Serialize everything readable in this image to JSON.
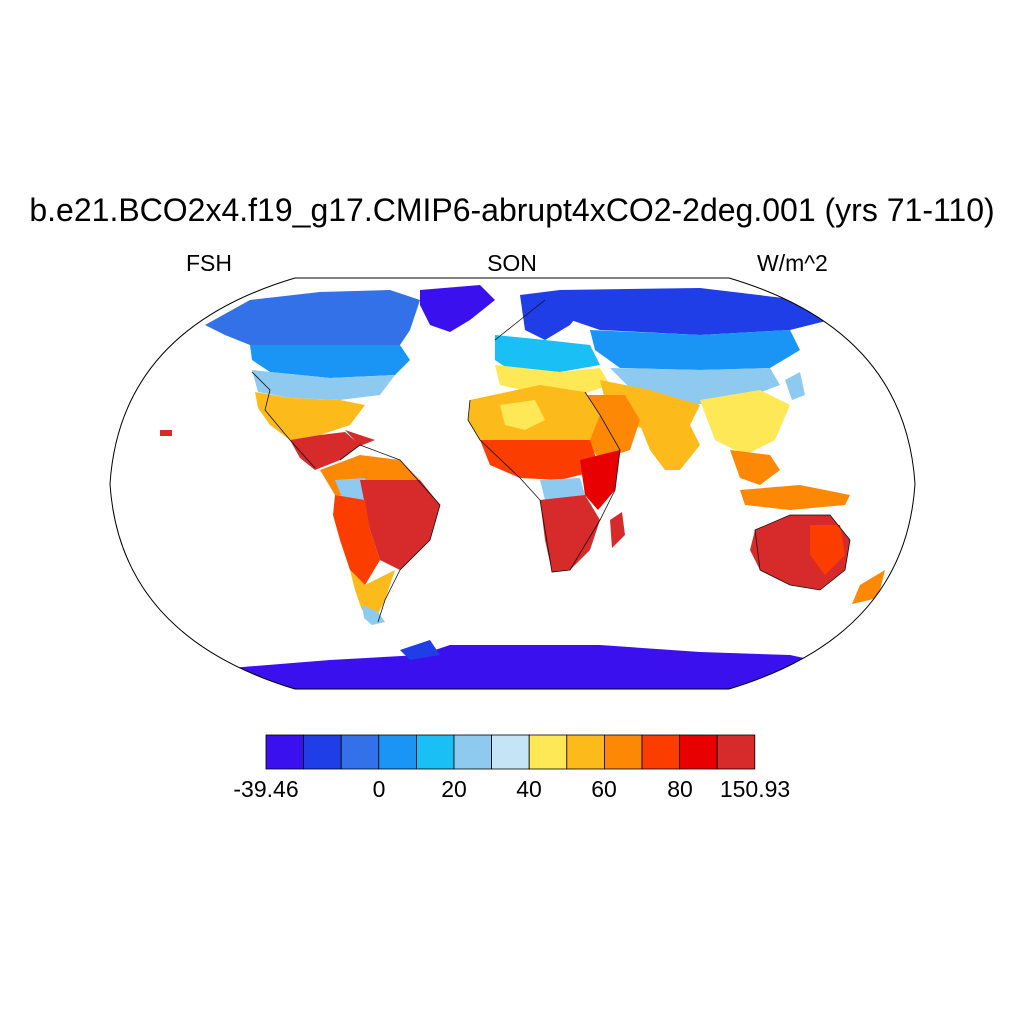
{
  "title": "b.e21.BCO2x4.f19_g17.CMIP6-abrupt4xCO2-2deg.001 (yrs 71-110)",
  "variable": "FSH",
  "season": "SON",
  "units": "W/m^2",
  "colorbar": {
    "colors": [
      "#3a10ee",
      "#1f3ee8",
      "#3271e8",
      "#1b95f5",
      "#19bff5",
      "#8ecaf0",
      "#c5e5f7",
      "#ffe855",
      "#fdbb1b",
      "#fd8806",
      "#fb3d00",
      "#e80000",
      "#d72a2a"
    ],
    "labels": [
      "-39.46",
      "0",
      "20",
      "40",
      "60",
      "80",
      "150.93"
    ]
  },
  "map": {
    "projection": "Robinson",
    "colors": {
      "antarctica": "#3a10ee",
      "highlat": "#1f3ee8",
      "boreal": "#1b95f5",
      "cool": "#19bff5",
      "temperate": "#8ecaf0",
      "mild": "#ffe855",
      "warm": "#fdbb1b",
      "hot": "#fd8806",
      "veryhot": "#fb3d00",
      "extreme": "#d72a2a"
    }
  }
}
